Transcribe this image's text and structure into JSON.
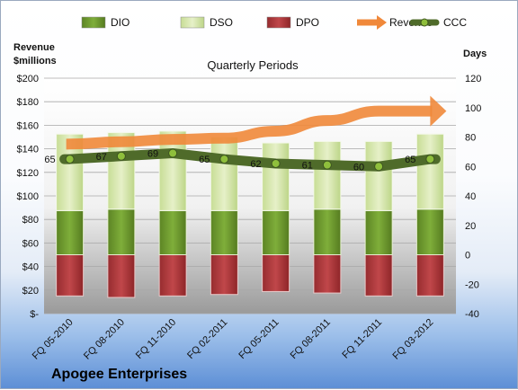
{
  "company": "Apogee Enterprises",
  "chart_data": {
    "type": "bar",
    "subtitle": "Quarterly Periods",
    "left_axis_label": [
      "Revenue",
      "$millions"
    ],
    "right_axis_label": "Days",
    "left_ylim": [
      0,
      200
    ],
    "right_ylim": [
      -40,
      120
    ],
    "left_ticks": [
      "$-",
      "$20",
      "$40",
      "$60",
      "$80",
      "$100",
      "$120",
      "$140",
      "$160",
      "$180",
      "$200"
    ],
    "right_ticks": [
      "-40",
      "-20",
      "0",
      "20",
      "40",
      "60",
      "80",
      "100",
      "120"
    ],
    "categories": [
      "FQ 05-2010",
      "FQ 08-2010",
      "FQ 11-2010",
      "FQ 02-2011",
      "FQ 05-2011",
      "FQ 08-2011",
      "FQ 11-2011",
      "FQ 03-2012"
    ],
    "series": [
      {
        "name": "DIO",
        "color": "#6f9a2e",
        "values": [
          30,
          31,
          30,
          30,
          30,
          31,
          30,
          31
        ]
      },
      {
        "name": "DSO",
        "color": "#d7e7b0",
        "values": [
          52,
          52,
          54,
          50,
          46,
          46,
          47,
          51
        ]
      },
      {
        "name": "DPO",
        "color": "#b23a3d",
        "values": [
          -28,
          -29,
          -28,
          -27,
          -25,
          -26,
          -28,
          -28
        ]
      },
      {
        "name": "Revenue",
        "color": "#f0883a",
        "values": [
          144,
          146,
          148,
          149,
          155,
          164,
          172,
          172
        ]
      },
      {
        "name": "CCC",
        "color": "#4f6b2a",
        "values": [
          65,
          67,
          69,
          65,
          62,
          61,
          60,
          65
        ]
      }
    ],
    "ccc_labels": [
      "65",
      "67",
      "69",
      "65",
      "62",
      "61",
      "60",
      "65"
    ],
    "legend": [
      "DIO",
      "DSO",
      "DPO",
      "Revenue",
      "CCC"
    ],
    "legend_position": "top",
    "grid": true
  }
}
